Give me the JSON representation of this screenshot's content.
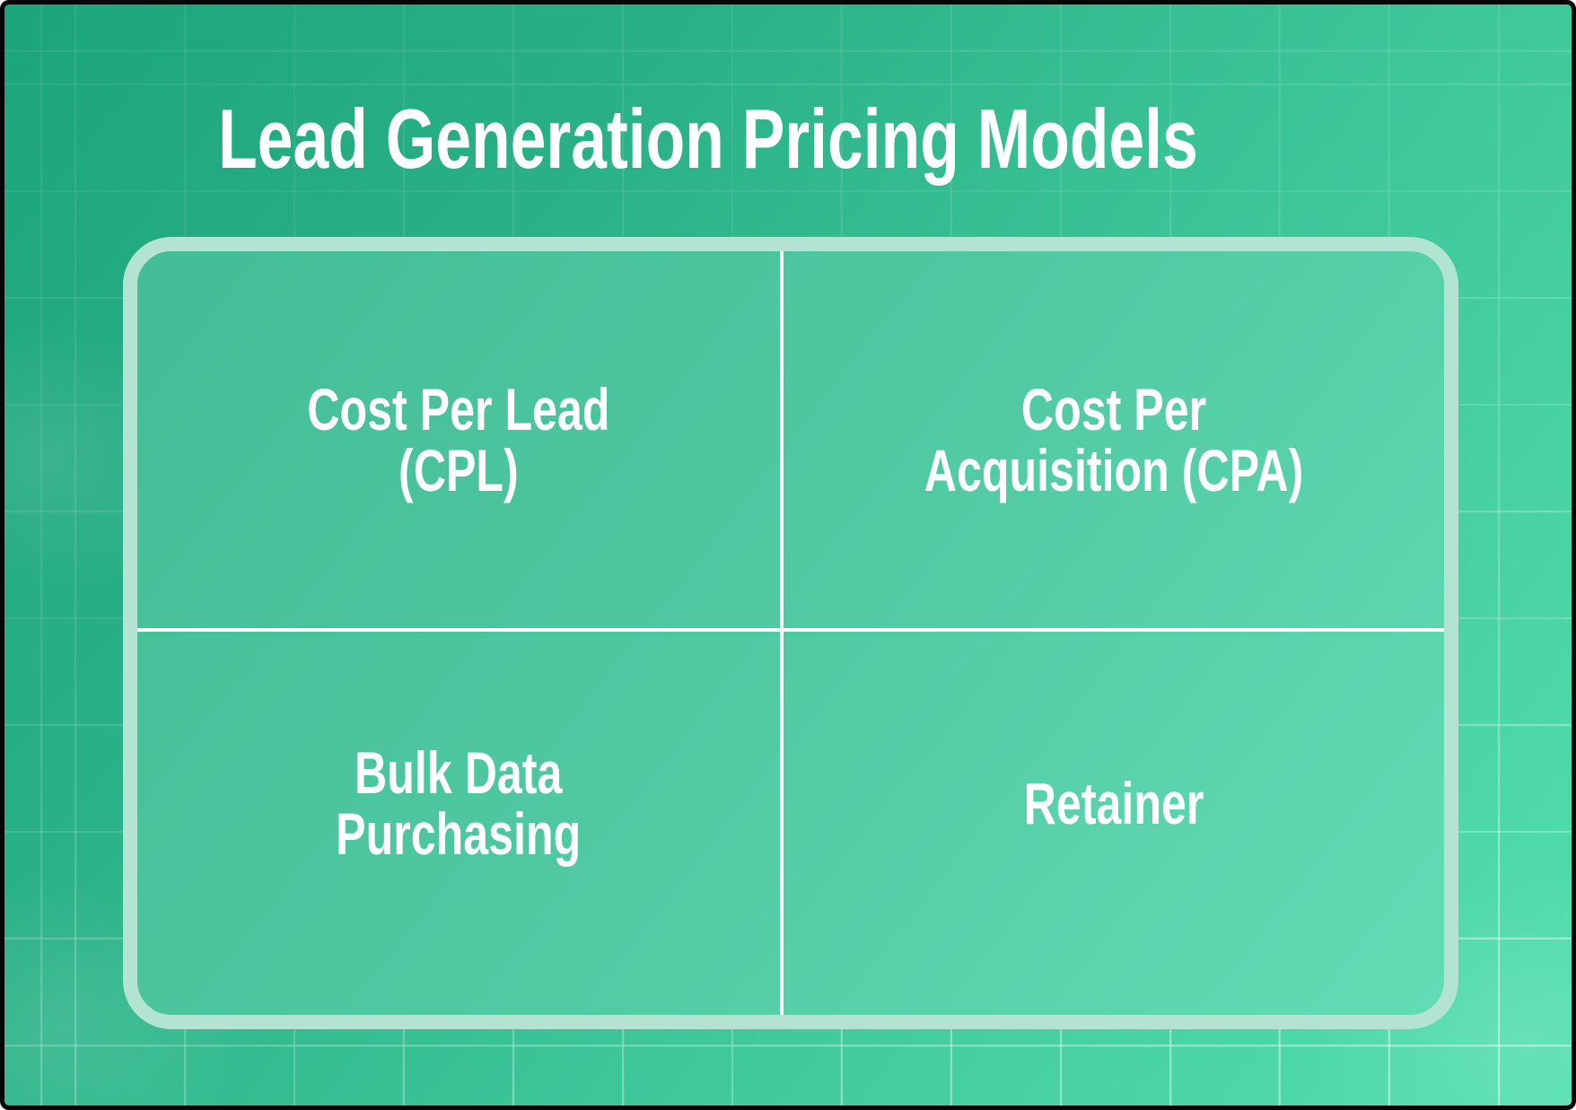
{
  "title": "Lead Generation Pricing Models",
  "matrix": {
    "cells": [
      {
        "id": "cpl",
        "label": "Cost Per Lead\n(CPL)"
      },
      {
        "id": "cpa",
        "label": "Cost Per\nAcquisition (CPA)"
      },
      {
        "id": "bulk",
        "label": "Bulk Data\nPurchasing"
      },
      {
        "id": "retainer",
        "label": "Retainer"
      }
    ]
  },
  "colors": {
    "background_gradient_start": "#1ca47c",
    "background_gradient_end": "#55dfb0",
    "card_fill_start": "#43bd97",
    "card_fill_end": "#63dcb6",
    "card_border": "#b3e4d2",
    "divider": "#ffffff",
    "text": "#ffffff"
  }
}
